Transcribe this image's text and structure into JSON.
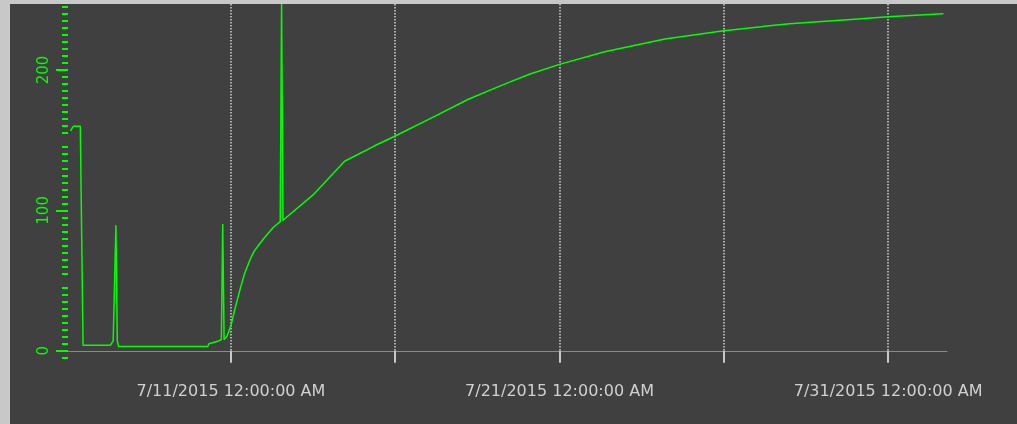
{
  "chart_data": {
    "type": "line",
    "x": [
      "2015-07-06T03:00",
      "2015-07-06T05:00",
      "2015-07-06T10:00",
      "2015-07-06T11:00",
      "2015-07-06T12:00",
      "2015-07-07T08:00",
      "2015-07-07T10:00",
      "2015-07-07T12:00",
      "2015-07-07T13:00",
      "2015-07-07T14:00",
      "2015-07-10T07:00",
      "2015-07-10T08:00",
      "2015-07-10T15:00",
      "2015-07-10T17:00",
      "2015-07-10T18:00",
      "2015-07-10T19:00",
      "2015-07-10T21:00",
      "2015-07-11T00:00",
      "2015-07-11T03:00",
      "2015-07-11T07:00",
      "2015-07-11T10:00",
      "2015-07-11T14:00",
      "2015-07-11T17:00",
      "2015-07-12T00:00",
      "2015-07-12T07:00",
      "2015-07-12T12:00",
      "2015-07-12T13:00",
      "2015-07-12T14:00",
      "2015-07-13T12:00",
      "2015-07-14T11:00",
      "2015-07-15T09:00",
      "2015-07-16T00:00",
      "2015-07-17T07:00",
      "2015-07-18T05:00",
      "2015-07-19T03:00",
      "2015-07-20T02:00",
      "2015-07-21T00:00",
      "2015-07-22T09:00",
      "2015-07-24T05:00",
      "2015-07-26T00:00",
      "2015-07-28T00:00",
      "2015-07-29T21:00",
      "2015-07-31T00:00",
      "2015-08-01T16:00"
    ],
    "series": [
      {
        "color": "#00ff00",
        "values": [
          157,
          160,
          160,
          81,
          4,
          4,
          7,
          89,
          7,
          3,
          3,
          5,
          7,
          8,
          90,
          8,
          10,
          18,
          30,
          45,
          55,
          65,
          71,
          80,
          88,
          92,
          247,
          93,
          111,
          135,
          146,
          153,
          168,
          179,
          188,
          197,
          204,
          213,
          222,
          228,
          233,
          236,
          238,
          240
        ]
      }
    ],
    "xlim": [
      "2015-07-06T01:00",
      "2015-08-01T19:00"
    ],
    "xticks": [
      {
        "value": "2015-07-11",
        "label": "7/11/2015 12:00:00 AM"
      },
      {
        "value": "2015-07-16",
        "label": null
      },
      {
        "value": "2015-07-21",
        "label": "7/21/2015 12:00:00 AM"
      },
      {
        "value": "2015-07-26",
        "label": null
      },
      {
        "value": "2015-07-31",
        "label": "7/31/2015 12:00:00 AM"
      }
    ],
    "ylim": [
      -8,
      247
    ],
    "yticks": [
      0,
      100,
      200
    ],
    "grid": "x",
    "marker": "none",
    "line_style": "solid"
  }
}
